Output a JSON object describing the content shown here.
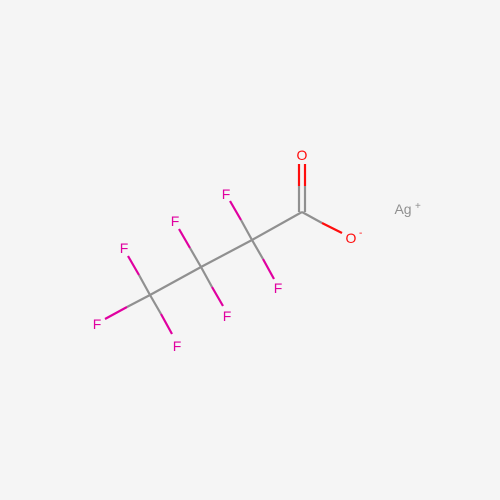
{
  "molecule": {
    "atoms": {
      "O_double": {
        "label": "O",
        "color": "#ff0d0d"
      },
      "O_single": {
        "label": "O",
        "charge": "-",
        "color": "#ff0d0d"
      },
      "F1": {
        "label": "F",
        "color": "#e000a0"
      },
      "F2": {
        "label": "F",
        "color": "#e000a0"
      },
      "F3": {
        "label": "F",
        "color": "#e000a0"
      },
      "F4": {
        "label": "F",
        "color": "#e000a0"
      },
      "F5": {
        "label": "F",
        "color": "#e000a0"
      },
      "F6": {
        "label": "F",
        "color": "#e000a0"
      },
      "F7": {
        "label": "F",
        "color": "#e000a0"
      },
      "Ag": {
        "label": "Ag",
        "charge": "+",
        "color": "#909090"
      }
    },
    "bond_color": "#909090"
  }
}
